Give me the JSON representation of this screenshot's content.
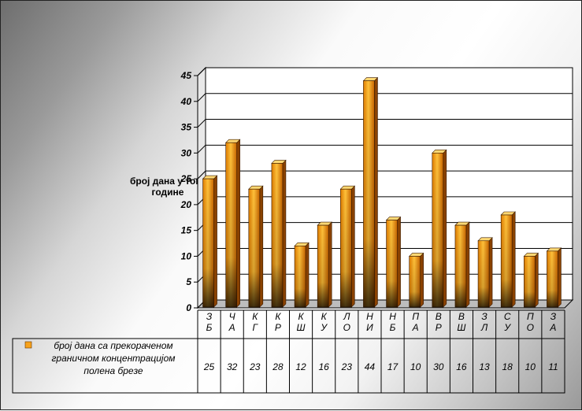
{
  "chart_data": {
    "type": "bar",
    "ylabel": "број дана у току године",
    "ylim": [
      0,
      45
    ],
    "yticks": [
      0,
      5,
      10,
      15,
      20,
      25,
      30,
      35,
      40,
      45
    ],
    "categories": [
      [
        "З",
        "Б"
      ],
      [
        "Ч",
        "А"
      ],
      [
        "К",
        "Г"
      ],
      [
        "К",
        "Р"
      ],
      [
        "К",
        "Ш"
      ],
      [
        "К",
        "У"
      ],
      [
        "Л",
        "О"
      ],
      [
        "Н",
        "И"
      ],
      [
        "Н",
        "Б"
      ],
      [
        "П",
        "А"
      ],
      [
        "В",
        "Р"
      ],
      [
        "В",
        "Ш"
      ],
      [
        "З",
        "Л"
      ],
      [
        "С",
        "У"
      ],
      [
        "П",
        "О"
      ],
      [
        "З",
        "А"
      ]
    ],
    "series": [
      {
        "name": "број дана са прекораченом граничном концентрацијом полена брезе",
        "legend_lines": [
          "број дана са прекораченом",
          "граничном концентрацијом",
          "полена брезе"
        ],
        "values": [
          25,
          32,
          23,
          28,
          12,
          16,
          23,
          44,
          17,
          10,
          30,
          16,
          13,
          18,
          10,
          11
        ],
        "color": "#f7a21b"
      }
    ],
    "grid": true,
    "legend": "data-table"
  }
}
